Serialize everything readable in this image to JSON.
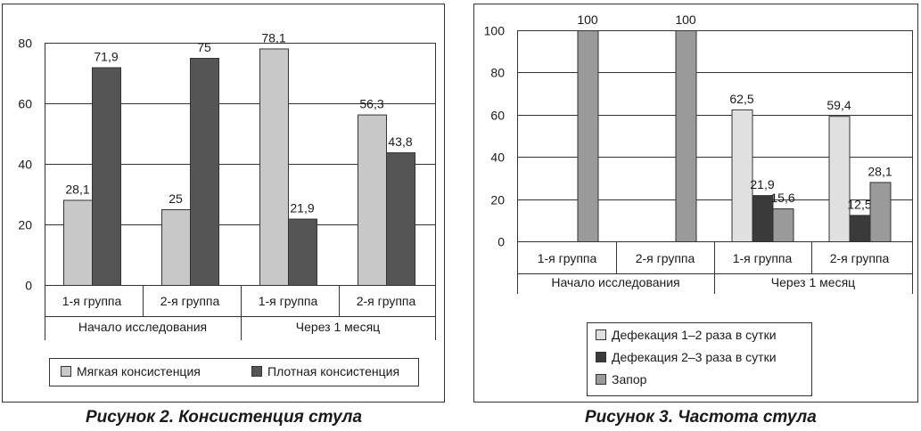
{
  "chart_data": [
    {
      "type": "bar",
      "caption": "Рисунок 2. Консистенция стула",
      "categories": [
        "1-я группа",
        "2-я группа",
        "1-я группа",
        "2-я группа"
      ],
      "groups": [
        {
          "label": "Начало исследования",
          "span": [
            0,
            1
          ]
        },
        {
          "label": "Через 1 месяц",
          "span": [
            2,
            3
          ]
        }
      ],
      "series": [
        {
          "name": "Мягкая консистенция",
          "color": "#c8c8c8",
          "values": [
            28.1,
            25,
            78.1,
            56.3
          ],
          "labels": [
            "28,1",
            "25",
            "78,1",
            "56,3"
          ]
        },
        {
          "name": "Плотная консистенция",
          "color": "#555555",
          "values": [
            71.9,
            75,
            21.9,
            43.8
          ],
          "labels": [
            "71,9",
            "75",
            "21,9",
            "43,8"
          ]
        }
      ],
      "ylim": [
        0,
        80
      ],
      "yticks": [
        0,
        20,
        40,
        60,
        80
      ],
      "grid": true,
      "legend_position": "bottom"
    },
    {
      "type": "bar",
      "caption": "Рисунок 3. Частота стула",
      "categories": [
        "1-я группа",
        "2-я группа",
        "1-я группа",
        "2-я группа"
      ],
      "groups": [
        {
          "label": "Начало исследования",
          "span": [
            0,
            1
          ]
        },
        {
          "label": "Через 1 месяц",
          "span": [
            2,
            3
          ]
        }
      ],
      "series": [
        {
          "name": "Дефекация 1–2 раза в сутки",
          "color": "#e0e0e0",
          "values": [
            0,
            0,
            62.5,
            59.4
          ],
          "labels": [
            "",
            "",
            "62,5",
            "59,4"
          ]
        },
        {
          "name": "Дефекация 2–3 раза в сутки",
          "color": "#3a3a3a",
          "values": [
            0,
            0,
            21.9,
            12.5
          ],
          "labels": [
            "",
            "",
            "21,9",
            "12,5"
          ]
        },
        {
          "name": "Запор",
          "color": "#9a9a9a",
          "values": [
            100,
            100,
            15.6,
            28.1
          ],
          "labels": [
            "100",
            "100",
            "15,6",
            "28,1"
          ]
        }
      ],
      "ylim": [
        0,
        100
      ],
      "yticks": [
        0,
        20,
        40,
        60,
        80,
        100
      ],
      "grid": true,
      "legend_position": "bottom"
    }
  ]
}
